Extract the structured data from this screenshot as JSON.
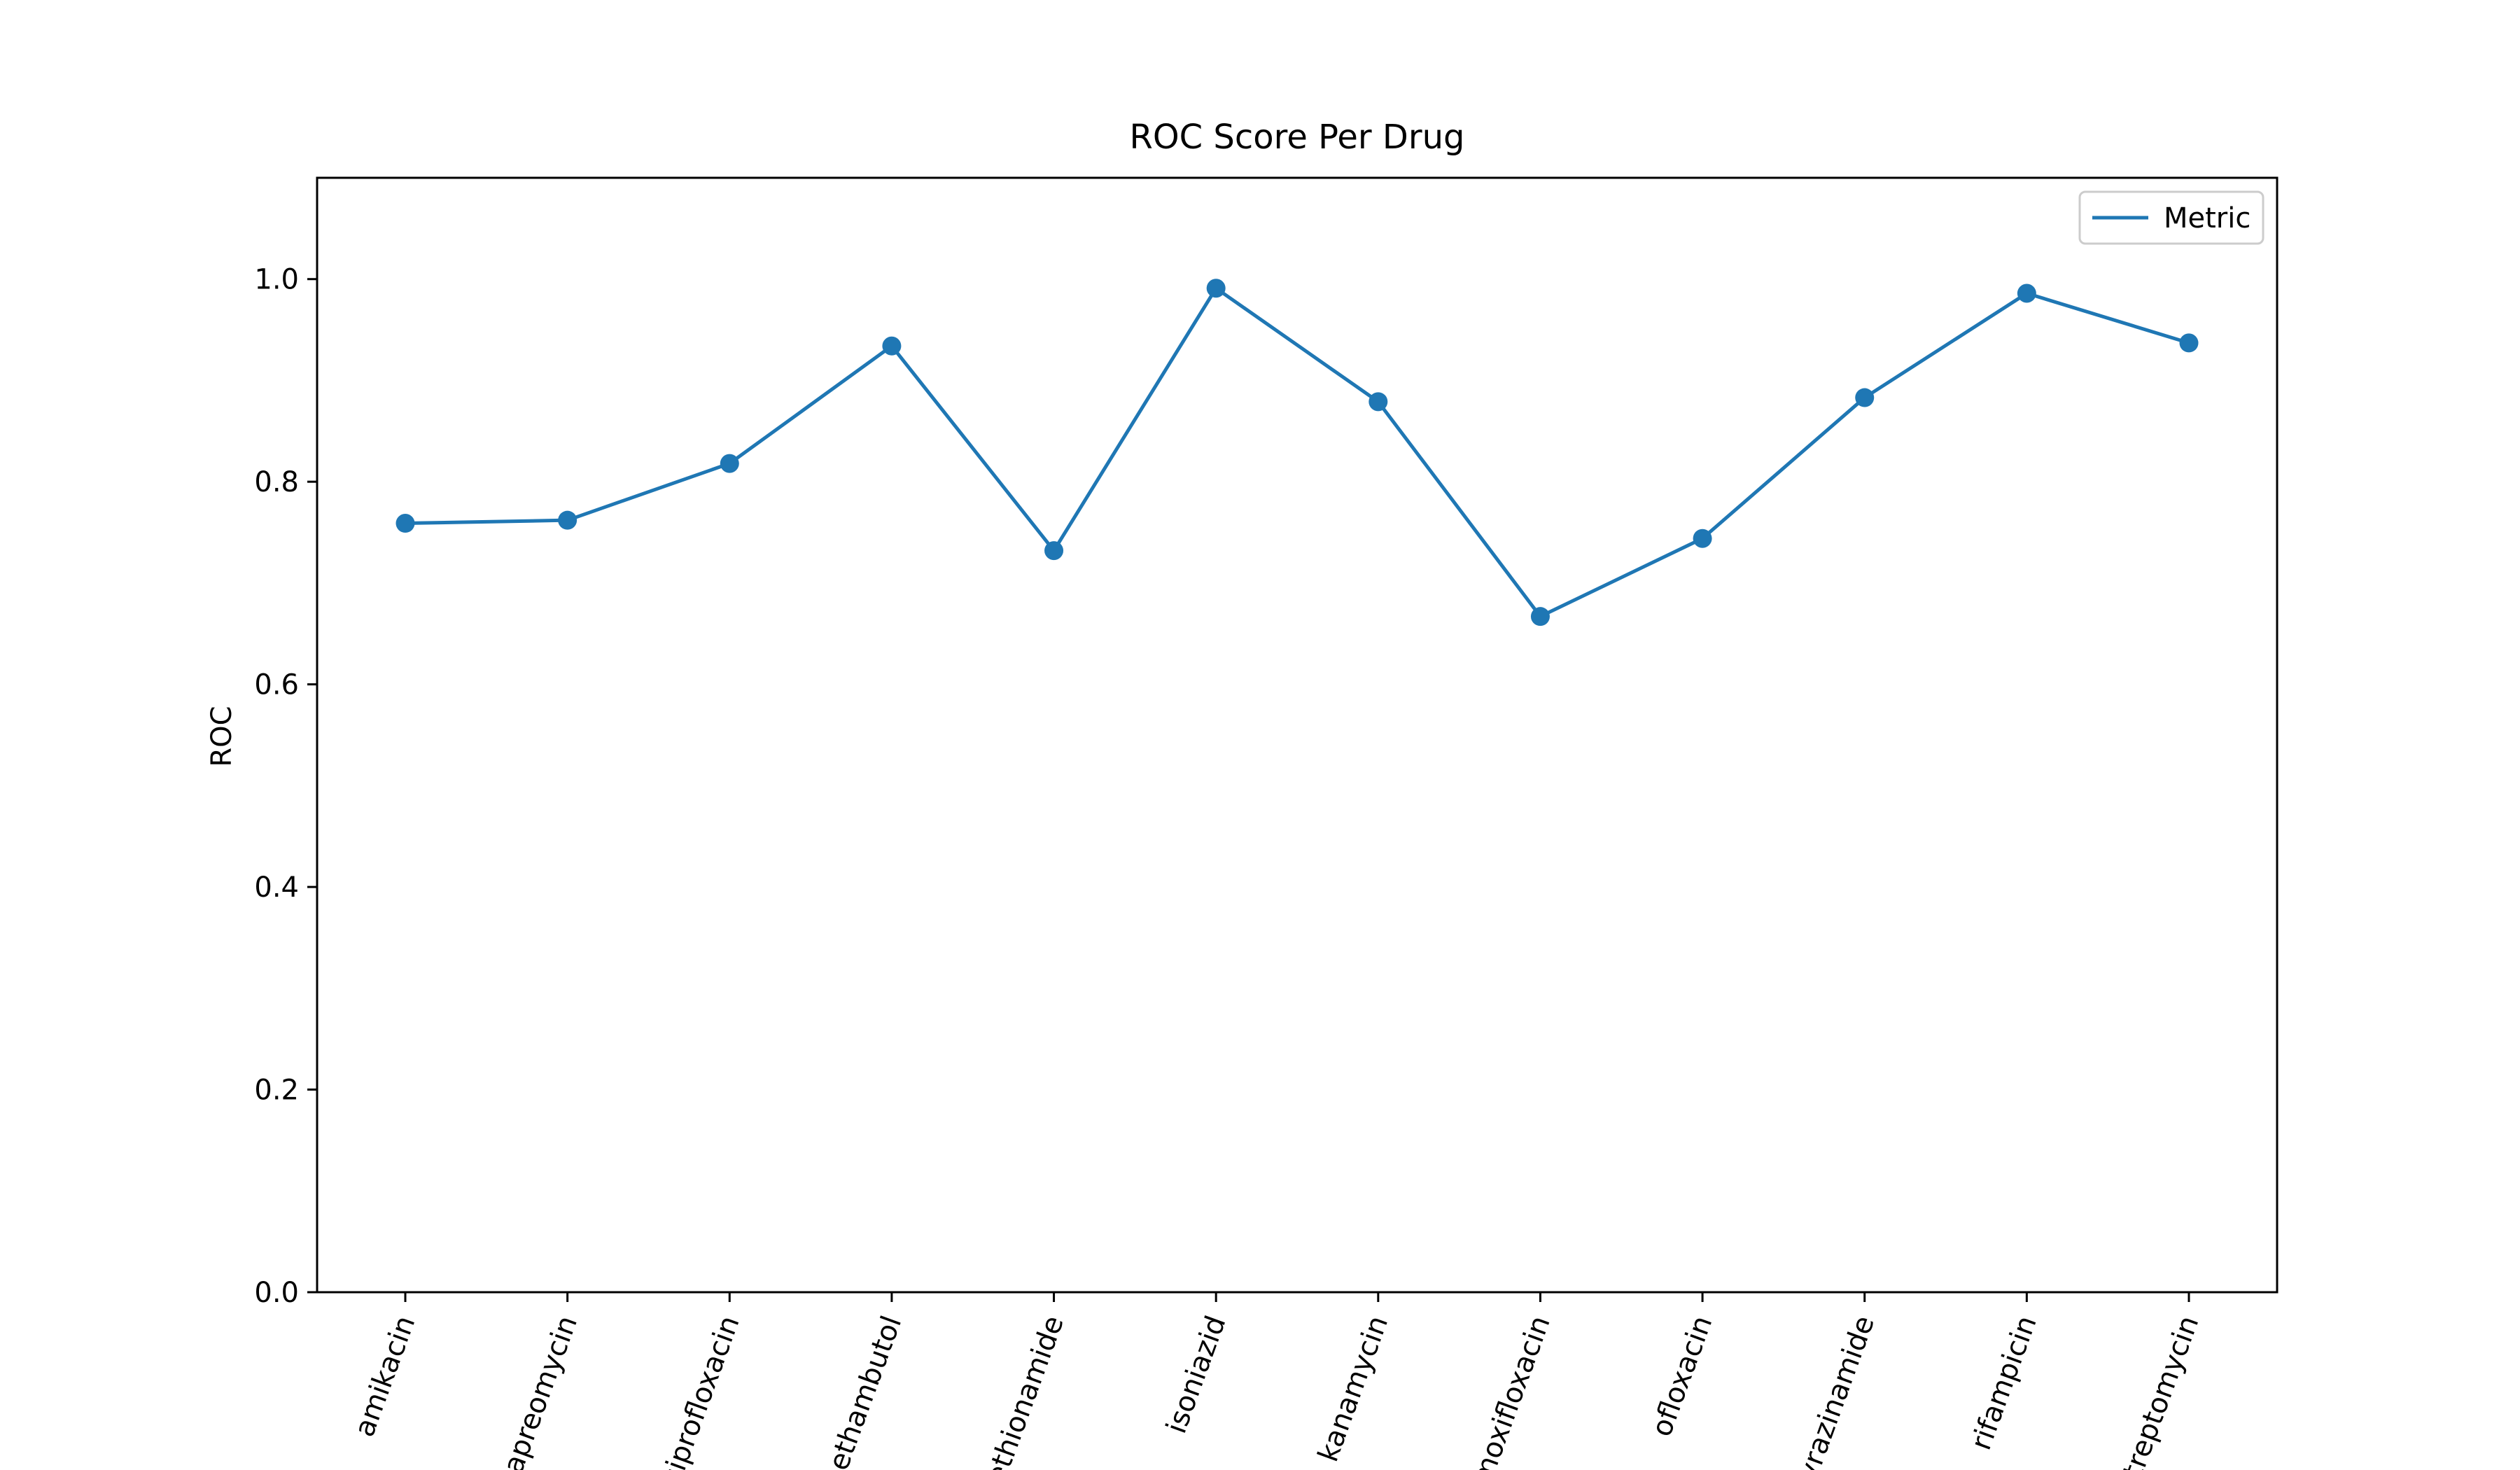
{
  "chart_data": {
    "type": "line",
    "title": "ROC Score Per Drug",
    "xlabel": "",
    "ylabel": "ROC",
    "categories": [
      "amikacin",
      "capreomycin",
      "ciprofloxacin",
      "ethambutol",
      "ethionamide",
      "isoniazid",
      "kanamycin",
      "moxifloxacin",
      "ofloxacin",
      "pyrazinamide",
      "rifampicin",
      "streptomycin"
    ],
    "series": [
      {
        "name": "Metric",
        "color": "#1f77b4",
        "marker": "circle",
        "values": [
          0.759,
          0.762,
          0.818,
          0.934,
          0.732,
          0.991,
          0.879,
          0.667,
          0.744,
          0.883,
          0.986,
          0.937
        ]
      }
    ],
    "ylim": [
      0,
      1.1
    ],
    "yticks": [
      0.0,
      0.2,
      0.4,
      0.6,
      0.8,
      1.0
    ],
    "ytick_labels": [
      "0.0",
      "0.2",
      "0.4",
      "0.6",
      "0.8",
      "1.0"
    ],
    "grid": false,
    "legend_position": "top-right",
    "xtick_rotation_deg": 70
  }
}
